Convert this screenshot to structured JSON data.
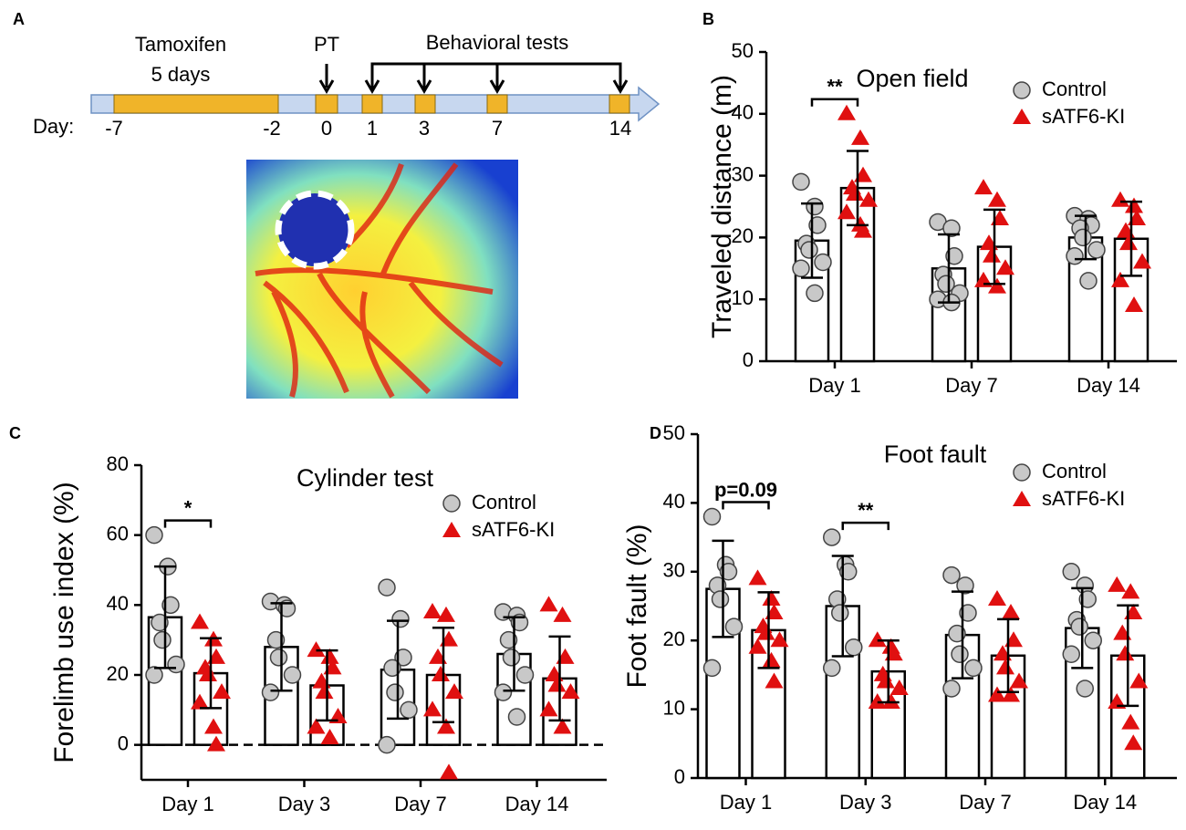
{
  "panel_a": {
    "label": "A",
    "timeline": {
      "day_prefix": "Day:",
      "days": [
        "-7",
        "-2",
        "0",
        "1",
        "3",
        "7",
        "14"
      ],
      "treatment": "Tamoxifen",
      "duration": "5 days",
      "surgery": "PT",
      "tests": "Behavioral tests"
    }
  },
  "chart_data": [
    {
      "type": "bar",
      "panel": "B",
      "title": "Open field",
      "ylabel": "Traveled distance (m)",
      "categories": [
        "Day 1",
        "Day 7",
        "Day 14"
      ],
      "series": [
        {
          "name": "Control",
          "color": "#c8c8c8",
          "marker": "circle",
          "values": [
            19.5,
            15,
            20
          ],
          "errors": [
            6,
            5.5,
            3.5
          ],
          "points": [
            [
              29,
              25,
              22,
              19,
              18,
              16,
              15,
              11
            ],
            [
              22.5,
              21.5,
              17,
              14,
              12.5,
              11,
              10,
              9.5
            ],
            [
              23.5,
              23,
              22,
              21.5,
              20,
              18,
              17,
              13
            ]
          ]
        },
        {
          "name": "sATF6-KI",
          "color": "#e01010",
          "marker": "triangle",
          "values": [
            28,
            18.5,
            19.8
          ],
          "errors": [
            6,
            6,
            6
          ],
          "points": [
            [
              40,
              36,
              30,
              28,
              27,
              26,
              24,
              22,
              21
            ],
            [
              28,
              26,
              23,
              19,
              17,
              15,
              13,
              12
            ],
            [
              26,
              25,
              23,
              21,
              19,
              16,
              13,
              9
            ]
          ]
        }
      ],
      "ylim": [
        0,
        50
      ],
      "yticks": [
        0,
        10,
        20,
        30,
        40,
        50
      ],
      "legend": "upper right",
      "annotations": [
        {
          "category": "Day 1",
          "text": "**"
        }
      ]
    },
    {
      "type": "bar",
      "panel": "C",
      "title": "Cylinder test",
      "ylabel": "Forelimb use index (%)",
      "categories": [
        "Day 1",
        "Day 3",
        "Day 7",
        "Day 14"
      ],
      "series": [
        {
          "name": "Control",
          "color": "#c8c8c8",
          "marker": "circle",
          "values": [
            36.5,
            28,
            21.5,
            26
          ],
          "errors": [
            14.5,
            12.5,
            14,
            10.5
          ],
          "points": [
            [
              60,
              51,
              40,
              35,
              30,
              23,
              20
            ],
            [
              41,
              40,
              39,
              30,
              25,
              20,
              15
            ],
            [
              45,
              36,
              25,
              22,
              15,
              10,
              0
            ],
            [
              38,
              37,
              35,
              30,
              25,
              20,
              15,
              8
            ]
          ]
        },
        {
          "name": "sATF6-KI",
          "color": "#e01010",
          "marker": "triangle",
          "values": [
            20.5,
            17,
            20,
            19
          ],
          "errors": [
            10,
            10,
            13.5,
            12
          ],
          "points": [
            [
              35,
              30,
              25,
              22,
              20,
              15,
              12,
              5,
              0
            ],
            [
              27,
              25,
              22,
              18,
              15,
              8,
              5,
              2
            ],
            [
              38,
              37,
              30,
              25,
              20,
              15,
              10,
              5,
              -8
            ],
            [
              40,
              37,
              25,
              20,
              17,
              15,
              10,
              5
            ]
          ]
        }
      ],
      "ylim": [
        -10,
        80
      ],
      "yticks": [
        0,
        20,
        40,
        60,
        80
      ],
      "reference_line": 0,
      "legend": "upper right",
      "annotations": [
        {
          "category": "Day 1",
          "text": "*"
        }
      ]
    },
    {
      "type": "bar",
      "panel": "D",
      "title": "Foot fault",
      "ylabel": "Foot fault (%)",
      "categories": [
        "Day 1",
        "Day 3",
        "Day 7",
        "Day 14"
      ],
      "series": [
        {
          "name": "Control",
          "color": "#c8c8c8",
          "marker": "circle",
          "values": [
            27.5,
            25,
            20.8,
            21.8
          ],
          "errors": [
            7,
            7.3,
            6.3,
            5.8
          ],
          "points": [
            [
              38,
              31,
              30,
              28,
              26,
              22,
              16
            ],
            [
              35,
              31,
              30,
              26,
              24,
              19,
              16
            ],
            [
              29.5,
              28,
              24,
              21,
              18,
              16,
              13
            ],
            [
              30,
              28,
              26,
              23,
              22,
              20,
              18,
              13
            ]
          ]
        },
        {
          "name": "sATF6-KI",
          "color": "#e01010",
          "marker": "triangle",
          "values": [
            21.5,
            15.5,
            17.8,
            17.8
          ],
          "errors": [
            5.5,
            4.5,
            5.3,
            7.3
          ],
          "points": [
            [
              29,
              26,
              24,
              22,
              21,
              20,
              19,
              17,
              14
            ],
            [
              20,
              19,
              18,
              15,
              14,
              13,
              11,
              11
            ],
            [
              26,
              24,
              20,
              18,
              16,
              14,
              12,
              12
            ],
            [
              28,
              27,
              24,
              21,
              18,
              14,
              11,
              8,
              5
            ]
          ]
        }
      ],
      "ylim": [
        0,
        50
      ],
      "yticks": [
        0,
        10,
        20,
        30,
        40,
        50
      ],
      "legend": "upper right",
      "annotations": [
        {
          "category": "Day 1",
          "text": "p=0.09"
        },
        {
          "category": "Day 3",
          "text": "**"
        }
      ]
    }
  ]
}
